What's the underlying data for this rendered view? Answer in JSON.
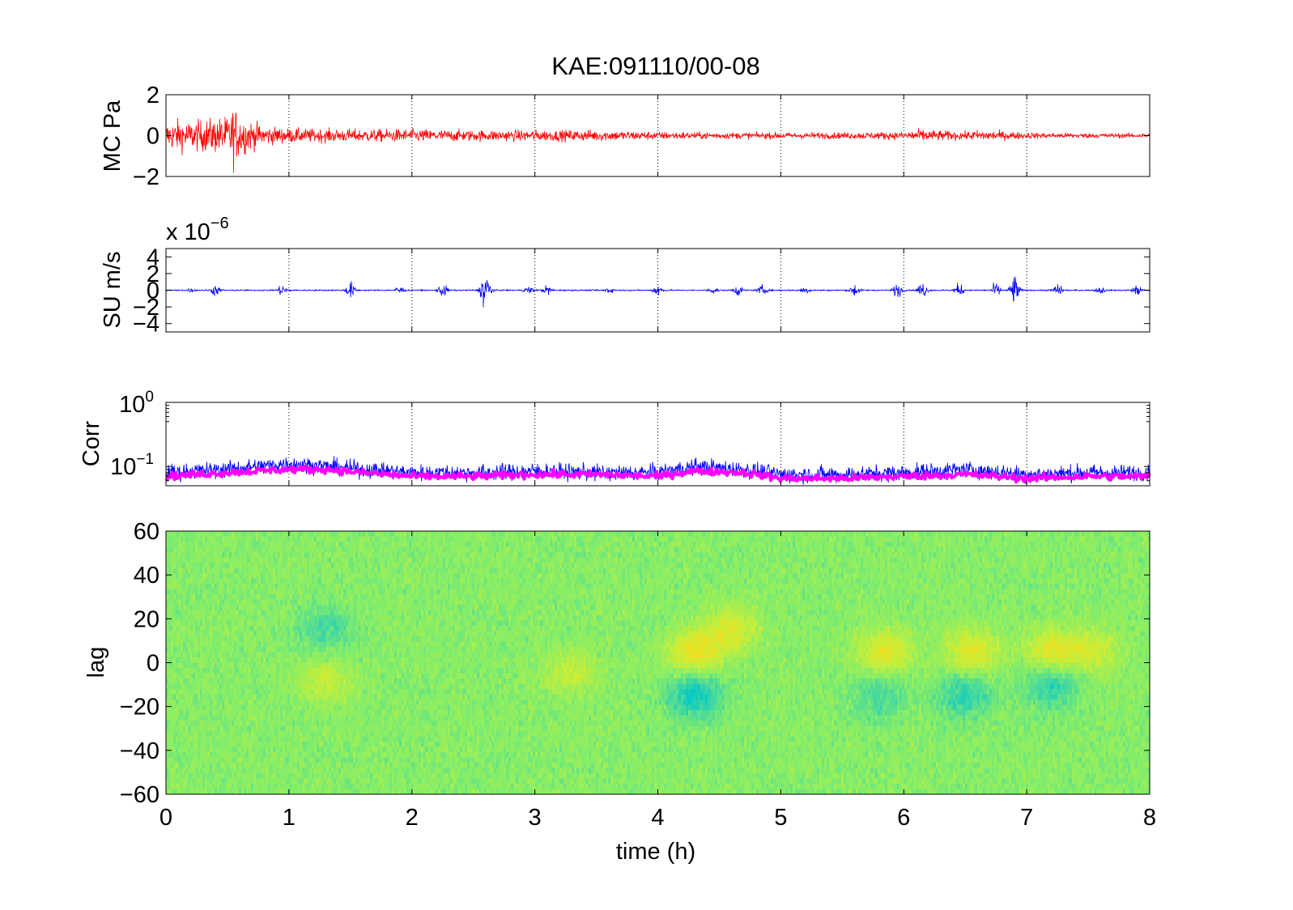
{
  "figure": {
    "title": "KAE:091110/00-08",
    "xlabel": "time (h)"
  },
  "chart_data": [
    {
      "type": "line",
      "panel": "MC",
      "ylabel": "MC Pa",
      "xlim": [
        0,
        8
      ],
      "ylim": [
        -2,
        2
      ],
      "yticks": [
        "2",
        "0",
        "−2"
      ],
      "grid": "x dotted",
      "series": [
        {
          "color": "#ff0000",
          "x": [
            0,
            0.1,
            0.2,
            0.3,
            0.4,
            0.5,
            0.55,
            0.6,
            0.7,
            0.8,
            1.0,
            1.5,
            2.0,
            2.5,
            3.0,
            3.5,
            4.0,
            4.5,
            5.0,
            5.5,
            6.0,
            6.1,
            6.5,
            6.6,
            7.0,
            7.5,
            8.0
          ],
          "envelope": [
            0.8,
            1.0,
            0.9,
            1.0,
            1.1,
            1.2,
            1.9,
            1.3,
            0.9,
            0.6,
            0.45,
            0.4,
            0.4,
            0.35,
            0.35,
            0.35,
            0.25,
            0.2,
            0.2,
            0.2,
            0.25,
            0.4,
            0.25,
            0.35,
            0.2,
            0.15,
            0.15
          ]
        }
      ]
    },
    {
      "type": "line",
      "panel": "SU",
      "ylabel": "SU m/s",
      "multiplier_base": "x 10",
      "multiplier_exp": "−6",
      "xlim": [
        0,
        8
      ],
      "ylim": [
        -5,
        5
      ],
      "yticks": [
        "4",
        "2",
        "0",
        "−2",
        "−4"
      ],
      "grid": "x dotted",
      "series": [
        {
          "color": "#0000ff",
          "bursts_x": [
            0.2,
            0.4,
            0.95,
            1.5,
            1.9,
            2.25,
            2.6,
            2.95,
            3.1,
            3.6,
            4.0,
            4.45,
            4.65,
            4.85,
            5.2,
            5.6,
            5.95,
            6.15,
            6.45,
            6.75,
            6.9,
            7.25,
            7.6,
            7.9
          ],
          "bursts_amp": [
            0.3,
            1.0,
            1.2,
            1.6,
            0.9,
            1.4,
            4.5,
            0.8,
            0.9,
            0.6,
            1.2,
            0.6,
            1.0,
            0.9,
            0.7,
            1.2,
            1.4,
            1.6,
            1.3,
            1.4,
            3.0,
            1.2,
            0.8,
            1.0
          ]
        }
      ]
    },
    {
      "type": "line",
      "panel": "Corr",
      "ylabel": "Corr",
      "yscale": "log",
      "xlim": [
        0,
        8
      ],
      "ylim": [
        0.05,
        1
      ],
      "yticks": [
        {
          "base": "10",
          "exp": "0"
        },
        {
          "base": "10",
          "exp": "−1"
        }
      ],
      "grid": "x dotted",
      "series": [
        {
          "color": "#0000ff",
          "x": [
            0,
            0.5,
            1.0,
            1.3,
            1.6,
            2.0,
            2.5,
            3.0,
            3.5,
            4.0,
            4.3,
            4.7,
            5.0,
            5.5,
            6.0,
            6.5,
            7.0,
            7.5,
            8.0
          ],
          "y": [
            0.08,
            0.09,
            0.11,
            0.1,
            0.09,
            0.08,
            0.08,
            0.085,
            0.08,
            0.08,
            0.1,
            0.09,
            0.075,
            0.075,
            0.08,
            0.09,
            0.075,
            0.08,
            0.08
          ]
        },
        {
          "color": "#ff00ff",
          "x": [
            0,
            0.5,
            1.0,
            1.3,
            1.6,
            2.0,
            2.5,
            3.0,
            3.5,
            4.0,
            4.3,
            4.7,
            5.0,
            5.5,
            6.0,
            6.5,
            7.0,
            7.5,
            8.0
          ],
          "y": [
            0.07,
            0.08,
            0.09,
            0.09,
            0.08,
            0.07,
            0.07,
            0.075,
            0.075,
            0.07,
            0.085,
            0.08,
            0.065,
            0.065,
            0.07,
            0.075,
            0.065,
            0.07,
            0.07
          ]
        }
      ]
    },
    {
      "type": "heatmap",
      "panel": "lag",
      "ylabel": "lag",
      "xlim": [
        0,
        8
      ],
      "ylim": [
        -60,
        60
      ],
      "yticks": [
        "60",
        "40",
        "20",
        "0",
        "−20",
        "−40",
        "−60"
      ],
      "xticks": [
        "0",
        "1",
        "2",
        "3",
        "4",
        "5",
        "6",
        "7",
        "8"
      ],
      "colormap": [
        "#00c8c8",
        "#44d8a0",
        "#88ee66",
        "#c6ee3a",
        "#f0e020"
      ],
      "features": [
        {
          "x": 4.3,
          "lag": 5,
          "value": 0.9
        },
        {
          "x": 4.3,
          "lag": -15,
          "value": -0.9
        },
        {
          "x": 5.85,
          "lag": 5,
          "value": 0.8
        },
        {
          "x": 6.55,
          "lag": 5,
          "value": 0.8
        },
        {
          "x": 7.2,
          "lag": 5,
          "value": 0.8
        },
        {
          "x": 7.55,
          "lag": 5,
          "value": 0.6
        },
        {
          "x": 4.6,
          "lag": 15,
          "value": 0.7
        },
        {
          "x": 3.3,
          "lag": -5,
          "value": 0.5
        },
        {
          "x": 1.3,
          "lag": -8,
          "value": 0.5
        },
        {
          "x": 1.3,
          "lag": 15,
          "value": -0.5
        },
        {
          "x": 6.5,
          "lag": -15,
          "value": -0.7
        },
        {
          "x": 7.2,
          "lag": -10,
          "value": -0.7
        },
        {
          "x": 5.8,
          "lag": -15,
          "value": -0.5
        }
      ]
    }
  ]
}
